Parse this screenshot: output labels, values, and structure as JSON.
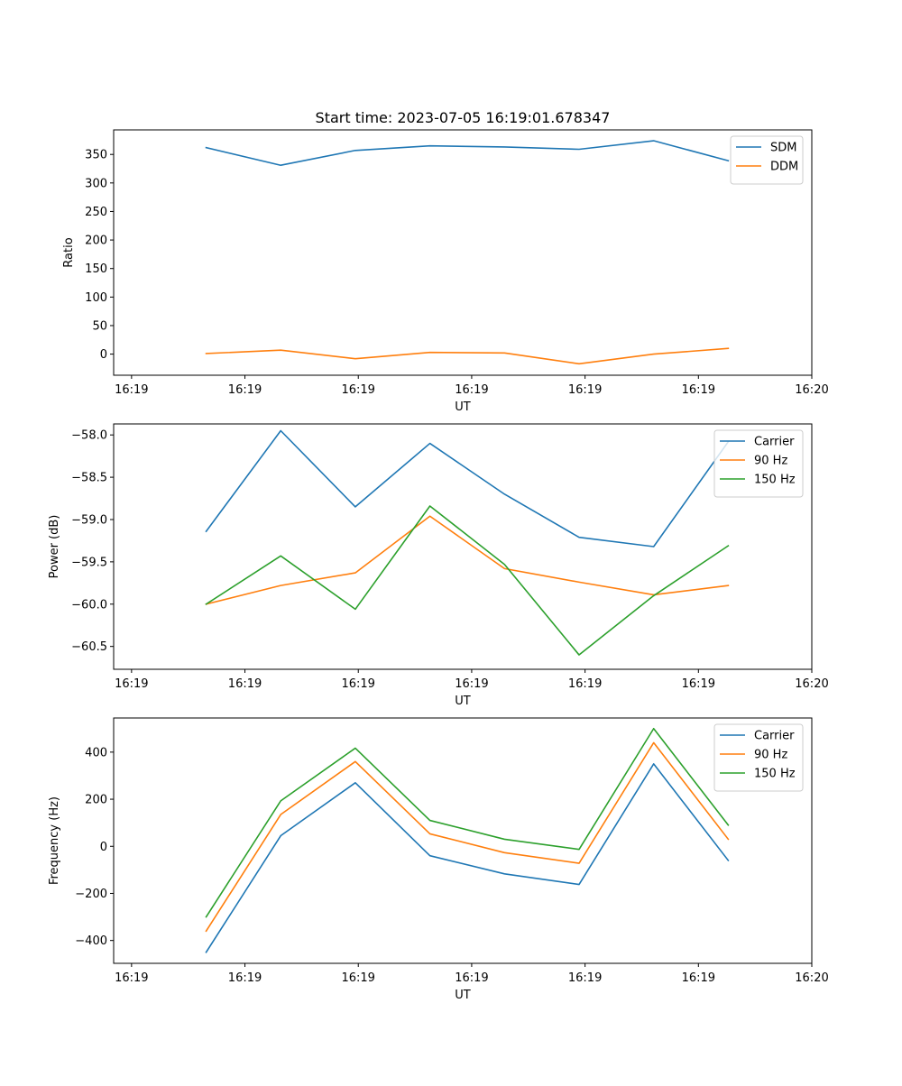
{
  "figure": {
    "title": "Start time: 2023-07-05 16:19:01.678347"
  },
  "chart_data": [
    {
      "type": "line",
      "title": "Start time: 2023-07-05 16:19:01.678347",
      "xlabel": "UT",
      "ylabel": "Ratio",
      "x_index": [
        0.5,
        1,
        1.5,
        2,
        2.5,
        3,
        3.5,
        4
      ],
      "xlim": [
        -0.12,
        4.56
      ],
      "x_ticks": [
        0,
        0.76,
        1.52,
        2.28,
        3.04,
        3.8,
        4.56
      ],
      "x_tick_labels": [
        "16:19",
        "16:19",
        "16:19",
        "16:19",
        "16:19",
        "16:19",
        "16:20"
      ],
      "ylim": [
        -37,
        393
      ],
      "y_ticks": [
        0,
        50,
        100,
        150,
        200,
        250,
        300,
        350
      ],
      "y_tick_labels": [
        "0",
        "50",
        "100",
        "150",
        "200",
        "250",
        "300",
        "350"
      ],
      "legend_position": "top-right",
      "series": [
        {
          "name": "SDM",
          "color": "#1f77b4",
          "values": [
            362,
            331,
            357,
            365,
            363,
            359,
            374,
            339
          ]
        },
        {
          "name": "DDM",
          "color": "#ff7f0e",
          "values": [
            1,
            7,
            -8,
            3,
            2,
            -17,
            0,
            10
          ]
        }
      ]
    },
    {
      "type": "line",
      "title": "",
      "xlabel": "UT",
      "ylabel": "Power (dB)",
      "x_index": [
        0.5,
        1,
        1.5,
        2,
        2.5,
        3,
        3.5,
        4
      ],
      "xlim": [
        -0.12,
        4.56
      ],
      "x_ticks": [
        0,
        0.76,
        1.52,
        2.28,
        3.04,
        3.8,
        4.56
      ],
      "x_tick_labels": [
        "16:19",
        "16:19",
        "16:19",
        "16:19",
        "16:19",
        "16:19",
        "16:20"
      ],
      "ylim": [
        -60.77,
        -57.87
      ],
      "y_ticks": [
        -60.5,
        -60.0,
        -59.5,
        -59.0,
        -58.5,
        -58.0
      ],
      "y_tick_labels": [
        "−60.5",
        "−60.0",
        "−59.5",
        "−59.0",
        "−58.5",
        "−58.0"
      ],
      "legend_position": "top-right",
      "series": [
        {
          "name": "Carrier",
          "color": "#1f77b4",
          "values": [
            -59.14,
            -57.95,
            -58.85,
            -58.1,
            -58.7,
            -59.21,
            -59.32,
            -58.08
          ]
        },
        {
          "name": "90 Hz",
          "color": "#ff7f0e",
          "values": [
            -60.0,
            -59.78,
            -59.63,
            -58.96,
            -59.58,
            -59.74,
            -59.89,
            -59.78
          ]
        },
        {
          "name": "150 Hz",
          "color": "#2ca02c",
          "values": [
            -60.0,
            -59.43,
            -60.06,
            -58.84,
            -59.53,
            -60.6,
            -59.9,
            -59.31
          ]
        }
      ]
    },
    {
      "type": "line",
      "title": "",
      "xlabel": "UT",
      "ylabel": "Frequency (Hz)",
      "x_index": [
        0.5,
        1,
        1.5,
        2,
        2.5,
        3,
        3.5,
        4
      ],
      "xlim": [
        -0.12,
        4.56
      ],
      "x_ticks": [
        0,
        0.76,
        1.52,
        2.28,
        3.04,
        3.8,
        4.56
      ],
      "x_tick_labels": [
        "16:19",
        "16:19",
        "16:19",
        "16:19",
        "16:19",
        "16:19",
        "16:20"
      ],
      "ylim": [
        -497,
        545
      ],
      "y_ticks": [
        -400,
        -200,
        0,
        200,
        400
      ],
      "y_tick_labels": [
        "−400",
        "−200",
        "0",
        "200",
        "400"
      ],
      "legend_position": "top-right",
      "series": [
        {
          "name": "Carrier",
          "color": "#1f77b4",
          "values": [
            -450,
            45,
            270,
            -40,
            -117,
            -162,
            350,
            -60
          ]
        },
        {
          "name": "90 Hz",
          "color": "#ff7f0e",
          "values": [
            -360,
            135,
            360,
            53,
            -27,
            -72,
            440,
            30
          ]
        },
        {
          "name": "150 Hz",
          "color": "#2ca02c",
          "values": [
            -300,
            193,
            417,
            110,
            30,
            -13,
            500,
            90
          ]
        }
      ]
    }
  ]
}
